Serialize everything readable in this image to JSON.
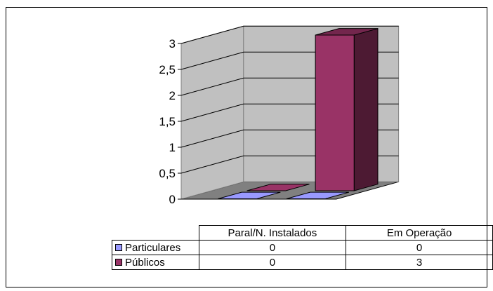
{
  "chart_data": {
    "type": "bar",
    "categories": [
      "Paral/N. Instalados",
      "Em Operação"
    ],
    "series": [
      {
        "name": "Particulares",
        "values": [
          0,
          0
        ],
        "color": "#9999FF"
      },
      {
        "name": "Públicos",
        "values": [
          0,
          3
        ],
        "color": "#993366"
      }
    ],
    "y_ticks": [
      "0",
      "0,5",
      "1",
      "1,5",
      "2",
      "2,5",
      "3"
    ],
    "ylim": [
      0,
      3
    ],
    "grid": true,
    "legend": "data-table",
    "projection": "3d-column"
  }
}
